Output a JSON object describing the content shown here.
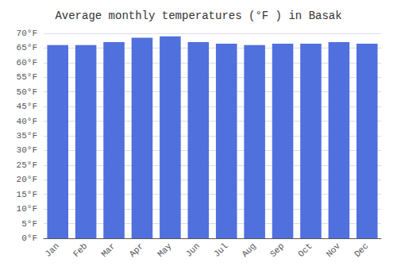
{
  "chart_data": {
    "type": "bar",
    "title": "Average monthly temperatures (°F ) in Basak",
    "categories": [
      "Jan",
      "Feb",
      "Mar",
      "Apr",
      "May",
      "Jun",
      "Jul",
      "Aug",
      "Sep",
      "Oct",
      "Nov",
      "Dec"
    ],
    "values": [
      66.0,
      66.0,
      67.0,
      68.5,
      69.0,
      67.0,
      66.5,
      66.0,
      66.5,
      66.5,
      67.0,
      66.5
    ],
    "ylim": [
      0,
      70
    ],
    "yticks": [
      {
        "value": 0,
        "label": "0°F"
      },
      {
        "value": 5,
        "label": "5°F"
      },
      {
        "value": 10,
        "label": "10°F"
      },
      {
        "value": 15,
        "label": "15°F"
      },
      {
        "value": 20,
        "label": "20°F"
      },
      {
        "value": 25,
        "label": "25°F"
      },
      {
        "value": 30,
        "label": "30°F"
      },
      {
        "value": 35,
        "label": "35°F"
      },
      {
        "value": 40,
        "label": "40°F"
      },
      {
        "value": 45,
        "label": "45°F"
      },
      {
        "value": 50,
        "label": "50°F"
      },
      {
        "value": 55,
        "label": "55°F"
      },
      {
        "value": 60,
        "label": "60°F"
      },
      {
        "value": 65,
        "label": "65°F"
      },
      {
        "value": 70,
        "label": "70°F"
      }
    ],
    "grid": true
  }
}
